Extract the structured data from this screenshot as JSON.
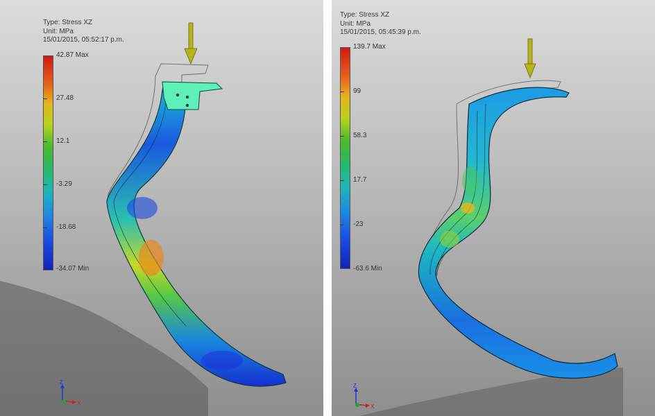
{
  "left_view": {
    "header": {
      "type": "Type: Stress XZ",
      "unit": "Unit: MPa",
      "timestamp": "15/01/2015, 05:52:17 p.m."
    },
    "legend": [
      "42.87 Max",
      "27.48",
      "12.1",
      "-3.29",
      "-18.68",
      "-34.07 Min"
    ],
    "triad": {
      "z": "Z",
      "x": "X"
    }
  },
  "right_view": {
    "header": {
      "type": "Type: Stress XZ",
      "unit": "Unit: MPa",
      "timestamp": "15/01/2015, 05:45:39 p.m."
    },
    "legend": [
      "139.7 Max",
      "99",
      "58.3",
      "17.7",
      "-23",
      "-63.6 Min"
    ],
    "triad": {
      "z": "Z",
      "x": "X"
    }
  },
  "colors": {
    "background_top": "#dcdcdc",
    "background_bottom": "#8e8e8e",
    "load_arrow": "#b8b21c"
  }
}
